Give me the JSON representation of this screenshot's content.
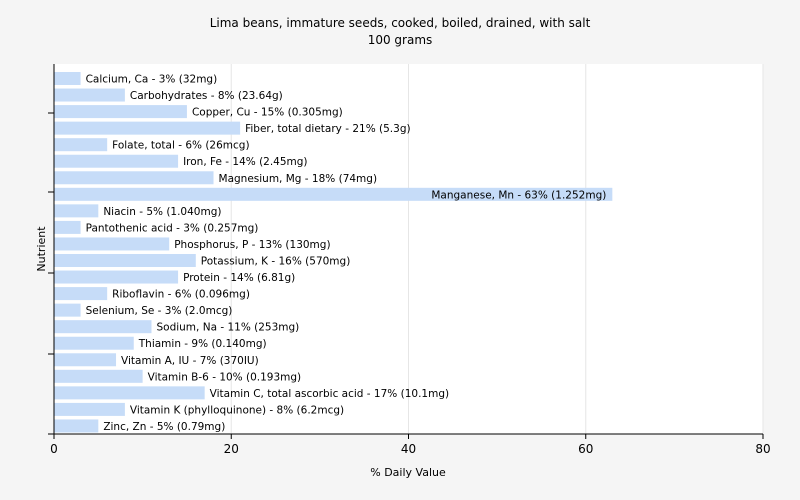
{
  "chart_data": {
    "type": "bar",
    "orientation": "horizontal",
    "title": "Lima beans, immature seeds, cooked, boiled, drained, with salt",
    "subtitle": "100 grams",
    "xlabel": "% Daily Value",
    "ylabel": "Nutrient",
    "xlim": [
      0,
      80
    ],
    "xticks": [
      "0",
      "20",
      "40",
      "60",
      "80"
    ],
    "grid": true,
    "bar_color": "#c6dcf8",
    "categories": [
      "Calcium, Ca",
      "Carbohydrates",
      "Copper, Cu",
      "Fiber, total dietary",
      "Folate, total",
      "Iron, Fe",
      "Magnesium, Mg",
      "Manganese, Mn",
      "Niacin",
      "Pantothenic acid",
      "Phosphorus, P",
      "Potassium, K",
      "Protein",
      "Riboflavin",
      "Selenium, Se",
      "Sodium, Na",
      "Thiamin",
      "Vitamin A, IU",
      "Vitamin B-6",
      "Vitamin C, total ascorbic acid",
      "Vitamin K (phylloquinone)",
      "Zinc, Zn"
    ],
    "values": [
      3,
      8,
      15,
      21,
      6,
      14,
      18,
      63,
      5,
      3,
      13,
      16,
      14,
      6,
      3,
      11,
      9,
      7,
      10,
      17,
      8,
      5
    ],
    "labels": [
      "Calcium, Ca - 3% (32mg)",
      "Carbohydrates - 8% (23.64g)",
      "Copper, Cu - 15% (0.305mg)",
      "Fiber, total dietary - 21% (5.3g)",
      "Folate, total - 6% (26mcg)",
      "Iron, Fe - 14% (2.45mg)",
      "Magnesium, Mg - 18% (74mg)",
      "Manganese, Mn - 63% (1.252mg)",
      "Niacin - 5% (1.040mg)",
      "Pantothenic acid - 3% (0.257mg)",
      "Phosphorus, P - 13% (130mg)",
      "Potassium, K - 16% (570mg)",
      "Protein - 14% (6.81g)",
      "Riboflavin - 6% (0.096mg)",
      "Selenium, Se - 3% (2.0mcg)",
      "Sodium, Na - 11% (253mg)",
      "Thiamin - 9% (0.140mg)",
      "Vitamin A, IU - 7% (370IU)",
      "Vitamin B-6 - 10% (0.193mg)",
      "Vitamin C, total ascorbic acid - 17% (10.1mg)",
      "Vitamin K (phylloquinone) - 8% (6.2mcg)",
      "Zinc, Zn - 5% (0.79mg)"
    ]
  }
}
